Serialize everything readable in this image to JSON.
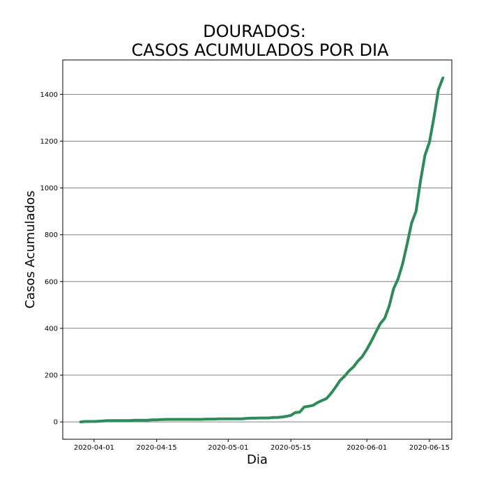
{
  "chart_data": {
    "type": "line",
    "title_line1": "DOURADOS:",
    "title_line2": "CASOS ACUMULADOS POR DIA",
    "xlabel": "Dia",
    "ylabel": "Casos Acumulados",
    "x_ticks": [
      "2020-04-01",
      "2020-04-15",
      "2020-05-01",
      "2020-05-15",
      "2020-06-01",
      "2020-06-15"
    ],
    "y_ticks": [
      0,
      200,
      400,
      600,
      800,
      1000,
      1200,
      1400
    ],
    "xlim": [
      "2020-03-25",
      "2020-06-20"
    ],
    "ylim": [
      -74,
      1547
    ],
    "grid": "horizontal",
    "line_color": "#2e8b57",
    "series": [
      {
        "x": [
          "2020-03-29",
          "2020-03-30",
          "2020-03-31",
          "2020-04-01",
          "2020-04-02",
          "2020-04-03",
          "2020-04-04",
          "2020-04-05",
          "2020-04-06",
          "2020-04-07",
          "2020-04-08",
          "2020-04-09",
          "2020-04-10",
          "2020-04-11",
          "2020-04-12",
          "2020-04-13",
          "2020-04-14",
          "2020-04-15",
          "2020-04-16",
          "2020-04-17",
          "2020-04-18",
          "2020-04-19",
          "2020-04-20",
          "2020-04-21",
          "2020-04-22",
          "2020-04-23",
          "2020-04-24",
          "2020-04-25",
          "2020-04-26",
          "2020-04-27",
          "2020-04-28",
          "2020-04-29",
          "2020-04-30",
          "2020-05-01",
          "2020-05-02",
          "2020-05-03",
          "2020-05-04",
          "2020-05-05",
          "2020-05-06",
          "2020-05-07",
          "2020-05-08",
          "2020-05-09",
          "2020-05-10",
          "2020-05-11",
          "2020-05-12",
          "2020-05-13",
          "2020-05-14",
          "2020-05-15",
          "2020-05-16",
          "2020-05-17",
          "2020-05-18",
          "2020-05-19",
          "2020-05-20",
          "2020-05-21",
          "2020-05-22",
          "2020-05-23",
          "2020-05-24",
          "2020-05-25",
          "2020-05-26",
          "2020-05-27",
          "2020-05-28",
          "2020-05-29",
          "2020-05-30",
          "2020-05-31",
          "2020-06-01",
          "2020-06-02",
          "2020-06-03",
          "2020-06-04",
          "2020-06-05",
          "2020-06-06",
          "2020-06-07",
          "2020-06-08",
          "2020-06-09",
          "2020-06-10",
          "2020-06-11",
          "2020-06-12",
          "2020-06-13",
          "2020-06-14",
          "2020-06-15",
          "2020-06-16",
          "2020-06-17",
          "2020-06-18"
        ],
        "y": [
          0,
          2,
          2,
          2,
          3,
          4,
          6,
          6,
          6,
          6,
          6,
          6,
          7,
          7,
          7,
          7,
          9,
          9,
          10,
          11,
          11,
          11,
          11,
          11,
          11,
          11,
          11,
          11,
          12,
          12,
          12,
          13,
          13,
          13,
          13,
          13,
          13,
          15,
          16,
          16,
          17,
          17,
          17,
          19,
          19,
          21,
          24,
          28,
          40,
          42,
          64,
          67,
          71,
          83,
          92,
          100,
          122,
          148,
          177,
          195,
          218,
          235,
          260,
          280,
          310,
          345,
          383,
          420,
          443,
          495,
          570,
          612,
          675,
          760,
          850,
          900,
          1030,
          1140,
          1195,
          1300,
          1420,
          1470
        ]
      }
    ]
  }
}
